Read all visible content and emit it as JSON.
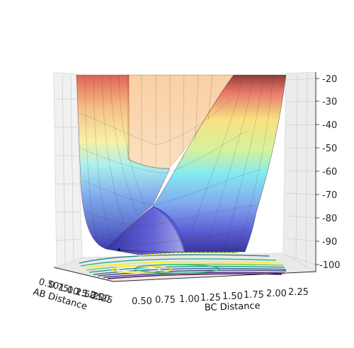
{
  "chart_data": {
    "type": "surface",
    "xlabel": "AB Distance",
    "ylabel": "BC Distance",
    "zlabel": "",
    "x_ticks": [
      "0.50",
      "0.75",
      "1.00",
      "1.25",
      "1.50",
      "1.75",
      "2.00",
      "2.25"
    ],
    "y_ticks": [
      "0.50",
      "0.75",
      "1.00",
      "1.25",
      "1.50",
      "1.75",
      "2.00",
      "2.25"
    ],
    "z_ticks": [
      "-20",
      "-30",
      "-40",
      "-50",
      "-60",
      "-70",
      "-80",
      "-90",
      "-100"
    ],
    "z_range": [
      -100,
      -20
    ],
    "colormap": "jet",
    "contour_colormap": "viridis",
    "trajectory_point_color": "#1a1a1a"
  }
}
